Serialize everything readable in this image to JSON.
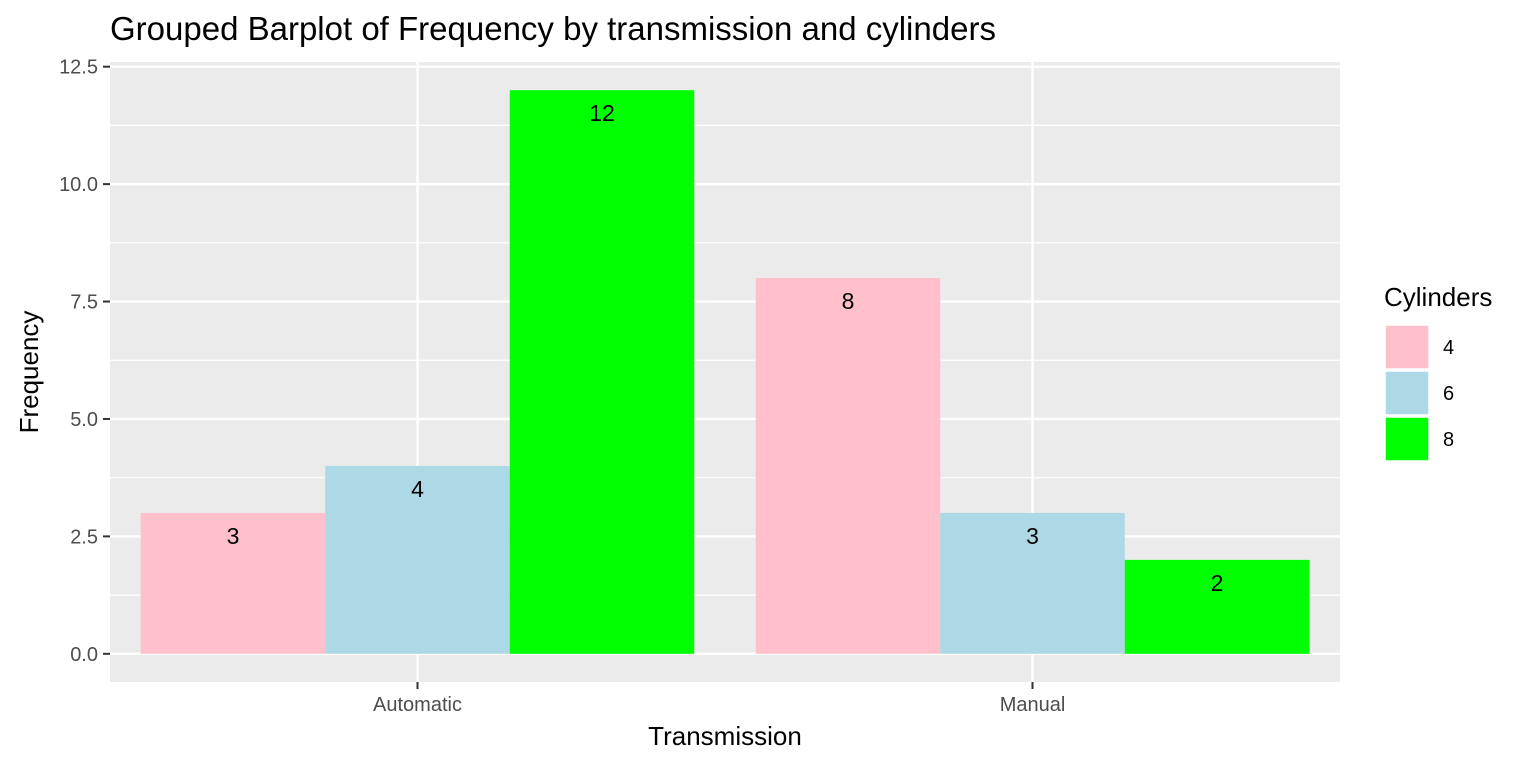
{
  "chart_data": {
    "type": "bar",
    "title": "Grouped Barplot of Frequency by transmission and cylinders",
    "xlabel": "Transmission",
    "ylabel": "Frequency",
    "categories": [
      "Automatic",
      "Manual"
    ],
    "series": [
      {
        "name": "4",
        "color": "#ffc0cb",
        "values": [
          3,
          8
        ]
      },
      {
        "name": "6",
        "color": "#add8e6",
        "values": [
          4,
          3
        ]
      },
      {
        "name": "8",
        "color": "#00ff00",
        "values": [
          12,
          2
        ]
      }
    ],
    "ylim": [
      -0.6,
      12.6
    ],
    "yticks": [
      "0.0",
      "2.5",
      "5.0",
      "7.5",
      "10.0",
      "12.5"
    ],
    "grid": true,
    "panel_background": "#ebebeb",
    "legend": {
      "title": "Cylinders",
      "position": "right"
    }
  }
}
